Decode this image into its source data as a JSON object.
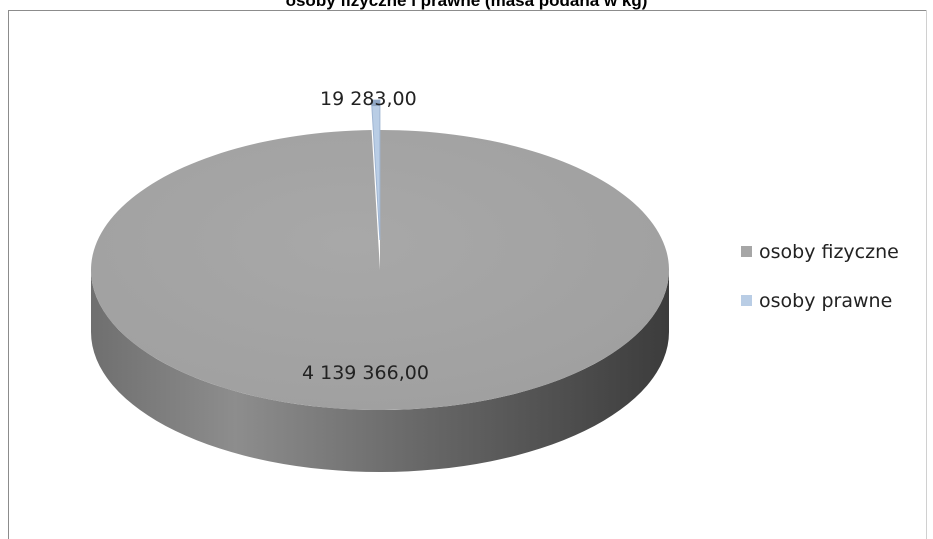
{
  "chart_data": {
    "type": "pie",
    "title": "osoby fizyczne i prawne (masa podana w kg)",
    "categories": [
      "osoby fizyczne",
      "osoby prawne"
    ],
    "values": [
      4139366,
      19283
    ],
    "value_labels": [
      "4 139 366,00",
      "19 283,00"
    ],
    "colors": [
      "#a6a6a6",
      "#b9cde5"
    ],
    "legend_position": "right",
    "style": "3d"
  }
}
